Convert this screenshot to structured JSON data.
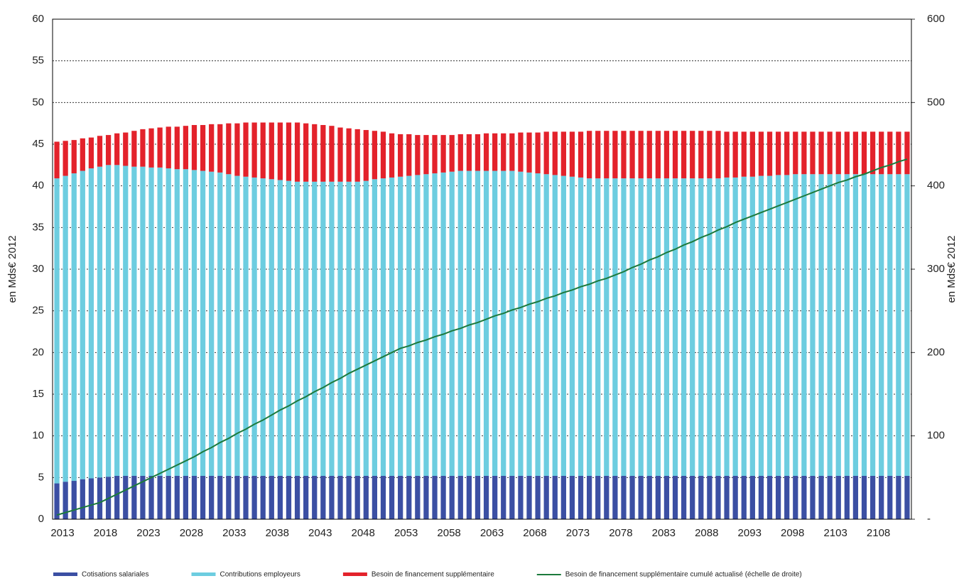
{
  "chart_data": {
    "type": "bar-line",
    "y_label": "en Mds€ 2012",
    "y2_label": "en Mds€ 2012",
    "categories": [
      "2013",
      null,
      null,
      null,
      null,
      "2018",
      null,
      null,
      null,
      null,
      "2023",
      null,
      null,
      null,
      null,
      "2028",
      null,
      null,
      null,
      null,
      "2033",
      null,
      null,
      null,
      null,
      "2038",
      null,
      null,
      null,
      null,
      "2043",
      null,
      null,
      null,
      null,
      "2048",
      null,
      null,
      null,
      null,
      "2053",
      null,
      null,
      null,
      null,
      "2058",
      null,
      null,
      null,
      null,
      "2063",
      null,
      null,
      null,
      null,
      "2068",
      null,
      null,
      null,
      null,
      "2073",
      null,
      null,
      null,
      null,
      "2078",
      null,
      null,
      null,
      null,
      "2083",
      null,
      null,
      null,
      null,
      "2088",
      null,
      null,
      null,
      null,
      "2093",
      null,
      null,
      null,
      null,
      "2098",
      null,
      null,
      null,
      null,
      "2103",
      null,
      null,
      null,
      null,
      "2108",
      null,
      null,
      null,
      null
    ],
    "series": [
      {
        "name": "Cotisations salariales",
        "color": "#3b4fa3",
        "kind": "bar",
        "values": [
          4.3,
          4.5,
          4.6,
          4.8,
          4.9,
          5.0,
          5.1,
          5.2,
          5.2,
          5.2,
          5.2,
          5.2,
          5.2,
          5.2,
          5.2,
          5.2,
          5.2,
          5.2,
          5.2,
          5.2,
          5.2,
          5.2,
          5.2,
          5.2,
          5.2,
          5.2,
          5.2,
          5.2,
          5.2,
          5.2,
          5.2,
          5.2,
          5.2,
          5.2,
          5.2,
          5.2,
          5.2,
          5.2,
          5.2,
          5.2,
          5.2,
          5.2,
          5.2,
          5.2,
          5.2,
          5.2,
          5.2,
          5.2,
          5.2,
          5.2,
          5.2,
          5.2,
          5.2,
          5.2,
          5.2,
          5.2,
          5.2,
          5.2,
          5.2,
          5.2,
          5.2,
          5.2,
          5.2,
          5.2,
          5.2,
          5.2,
          5.2,
          5.2,
          5.2,
          5.2,
          5.2,
          5.2,
          5.2,
          5.2,
          5.2,
          5.2,
          5.2,
          5.2,
          5.2,
          5.2,
          5.2,
          5.2,
          5.2,
          5.2,
          5.2,
          5.2,
          5.2,
          5.2,
          5.2,
          5.2,
          5.2,
          5.2,
          5.2,
          5.2,
          5.2,
          5.2,
          5.2,
          5.2,
          5.2,
          5.2
        ]
      },
      {
        "name": "Contributions employeurs",
        "color": "#6dcde0",
        "kind": "bar",
        "values": [
          36.6,
          36.7,
          36.9,
          37.0,
          37.2,
          37.3,
          37.4,
          37.3,
          37.2,
          37.1,
          37.1,
          37.0,
          37.0,
          36.9,
          36.8,
          36.8,
          36.7,
          36.6,
          36.5,
          36.4,
          36.2,
          36.0,
          35.9,
          35.8,
          35.7,
          35.6,
          35.5,
          35.4,
          35.3,
          35.3,
          35.3,
          35.3,
          35.3,
          35.3,
          35.3,
          35.3,
          35.4,
          35.6,
          35.7,
          35.8,
          35.9,
          36.0,
          36.1,
          36.2,
          36.3,
          36.4,
          36.5,
          36.6,
          36.6,
          36.6,
          36.6,
          36.6,
          36.6,
          36.6,
          36.5,
          36.4,
          36.3,
          36.2,
          36.1,
          36.0,
          35.9,
          35.8,
          35.7,
          35.7,
          35.7,
          35.7,
          35.7,
          35.7,
          35.7,
          35.7,
          35.7,
          35.7,
          35.7,
          35.7,
          35.7,
          35.7,
          35.7,
          35.7,
          35.8,
          35.8,
          35.9,
          35.9,
          36.0,
          36.0,
          36.1,
          36.1,
          36.2,
          36.2,
          36.2,
          36.2,
          36.2,
          36.2,
          36.2,
          36.2,
          36.2,
          36.2,
          36.2,
          36.2,
          36.2,
          36.2
        ]
      },
      {
        "name": "Besoin de financement supplémentaire",
        "color": "#e3222b",
        "kind": "bar",
        "values": [
          4.4,
          4.2,
          4.0,
          3.9,
          3.7,
          3.7,
          3.6,
          3.8,
          4.0,
          4.3,
          4.5,
          4.7,
          4.8,
          5.0,
          5.1,
          5.2,
          5.4,
          5.5,
          5.7,
          5.8,
          6.1,
          6.3,
          6.5,
          6.6,
          6.7,
          6.8,
          6.9,
          7.0,
          7.1,
          7.0,
          6.9,
          6.8,
          6.7,
          6.5,
          6.4,
          6.3,
          6.1,
          5.8,
          5.6,
          5.3,
          5.1,
          5.0,
          4.8,
          4.7,
          4.6,
          4.5,
          4.4,
          4.4,
          4.4,
          4.4,
          4.5,
          4.5,
          4.5,
          4.5,
          4.7,
          4.8,
          4.9,
          5.1,
          5.2,
          5.3,
          5.4,
          5.5,
          5.7,
          5.7,
          5.7,
          5.7,
          5.7,
          5.7,
          5.7,
          5.7,
          5.7,
          5.7,
          5.7,
          5.7,
          5.7,
          5.7,
          5.7,
          5.7,
          5.5,
          5.5,
          5.4,
          5.4,
          5.3,
          5.3,
          5.2,
          5.2,
          5.1,
          5.1,
          5.1,
          5.1,
          5.1,
          5.1,
          5.1,
          5.1,
          5.1,
          5.1,
          5.1,
          5.1,
          5.1,
          5.1
        ]
      },
      {
        "name": "Besoin de financement supplémentaire cumulé actualisé (échelle de droite)",
        "color": "#1c7a3c",
        "kind": "line",
        "axis": "y2",
        "values": [
          5,
          8,
          11,
          14,
          17,
          20,
          25,
          30,
          35,
          40,
          45,
          50,
          55,
          60,
          65,
          70,
          75,
          81,
          86,
          92,
          97,
          103,
          108,
          114,
          119,
          125,
          131,
          136,
          142,
          147,
          153,
          158,
          164,
          169,
          175,
          180,
          185,
          190,
          195,
          200,
          205,
          208,
          212,
          215,
          219,
          222,
          226,
          229,
          233,
          236,
          240,
          244,
          247,
          251,
          254,
          258,
          261,
          265,
          268,
          272,
          275,
          279,
          282,
          286,
          289,
          293,
          297,
          302,
          306,
          311,
          315,
          320,
          324,
          329,
          333,
          338,
          342,
          347,
          351,
          356,
          360,
          364,
          368,
          372,
          376,
          380,
          384,
          388,
          392,
          396,
          400,
          404,
          407,
          411,
          414,
          418,
          422,
          425,
          429,
          432
        ]
      }
    ],
    "ylim": [
      0,
      60
    ],
    "yticks": [
      0,
      5,
      10,
      15,
      20,
      25,
      30,
      35,
      40,
      45,
      50,
      55,
      60
    ],
    "y2lim": [
      0,
      600
    ],
    "y2ticks": [
      {
        "value": 0,
        "label": "-"
      },
      100,
      200,
      300,
      400,
      500,
      600
    ],
    "grid": true
  }
}
